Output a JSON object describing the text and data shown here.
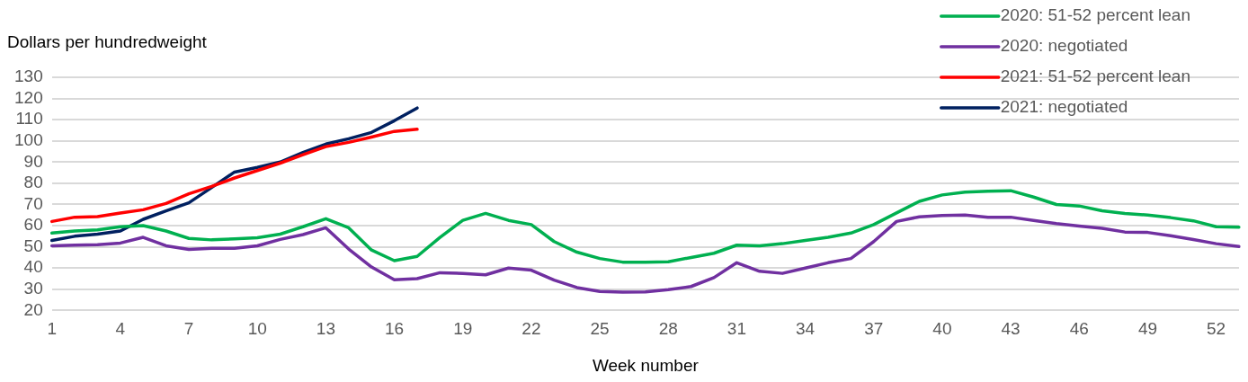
{
  "chart_data": {
    "type": "line",
    "ylabel": "Dollars per hundredweight",
    "xlabel": "Week number",
    "categories": [
      "1",
      null,
      null,
      "4",
      null,
      null,
      "7",
      null,
      null,
      "10",
      null,
      null,
      "13",
      null,
      null,
      "16",
      null,
      null,
      "19",
      null,
      null,
      "22",
      null,
      null,
      "25",
      null,
      null,
      "28",
      null,
      null,
      "31",
      null,
      null,
      "34",
      null,
      null,
      "37",
      null,
      null,
      "40",
      null,
      null,
      "43",
      null,
      null,
      "46",
      null,
      null,
      "49",
      null,
      null,
      "52",
      null
    ],
    "ylim": [
      20,
      130
    ],
    "yticks": [
      20,
      30,
      40,
      50,
      60,
      70,
      80,
      90,
      100,
      110,
      120,
      130
    ],
    "grid": "y",
    "legend": "top right",
    "marker": "none",
    "line_style": "solid",
    "series": [
      {
        "name": "2020: 51-52 percent lean",
        "color": "#00b050",
        "values": [
          56.5,
          57.5,
          58,
          59.5,
          60,
          57.5,
          54,
          53.3,
          53.8,
          54.3,
          56,
          59.5,
          63.3,
          59,
          48.5,
          43.5,
          45.5,
          54.5,
          62.5,
          65.8,
          62.5,
          60.5,
          52.5,
          47.5,
          44.5,
          42.8,
          42.8,
          43,
          45,
          47,
          50.8,
          50.5,
          51.5,
          53,
          54.5,
          56.5,
          60.5,
          66,
          71.5,
          74.5,
          75.8,
          76.3,
          76.5,
          73.5,
          70,
          69.3,
          67,
          65.8,
          65,
          63.8,
          62.3,
          59.5,
          59.3
        ]
      },
      {
        "name": "2020: negotiated",
        "color": "#7030a0",
        "values": [
          50.5,
          50.8,
          51,
          51.8,
          54.5,
          50.5,
          48.8,
          49.3,
          49.3,
          50.5,
          53.5,
          55.8,
          59,
          49,
          40.5,
          34.5,
          35,
          37.8,
          37.5,
          36.8,
          40,
          39,
          34.3,
          30.8,
          29,
          28.7,
          28.8,
          29.8,
          31.3,
          35.5,
          42.5,
          38.5,
          37.5,
          40,
          42.5,
          44.5,
          52.5,
          62,
          64.2,
          64.8,
          65,
          64,
          64,
          62.5,
          61,
          59.8,
          58.8,
          57,
          56.8,
          55.3,
          53.5,
          51.5,
          50.2
        ]
      },
      {
        "name": "2021: 51-52 percent lean",
        "color": "#ff0000",
        "values": [
          62,
          64,
          64.3,
          66,
          67.5,
          70.5,
          75,
          78.5,
          82.5,
          86,
          89.5,
          93.5,
          97.3,
          99.3,
          101.8,
          104.5,
          105.5,
          null,
          null,
          null,
          null,
          null,
          null,
          null,
          null,
          null,
          null,
          null,
          null,
          null,
          null,
          null,
          null,
          null,
          null,
          null,
          null,
          null,
          null,
          null,
          null,
          null,
          null,
          null,
          null,
          null,
          null,
          null,
          null,
          null,
          null,
          null,
          null
        ]
      },
      {
        "name": "2021: negotiated",
        "color": "#002060",
        "values": [
          53,
          55,
          56,
          57.5,
          63,
          67,
          70.8,
          78,
          85.3,
          87.5,
          90,
          94.5,
          98.5,
          101,
          104,
          109.5,
          115.5,
          null,
          null,
          null,
          null,
          null,
          null,
          null,
          null,
          null,
          null,
          null,
          null,
          null,
          null,
          null,
          null,
          null,
          null,
          null,
          null,
          null,
          null,
          null,
          null,
          null,
          null,
          null,
          null,
          null,
          null,
          null,
          null,
          null,
          null,
          null,
          null
        ]
      }
    ]
  }
}
